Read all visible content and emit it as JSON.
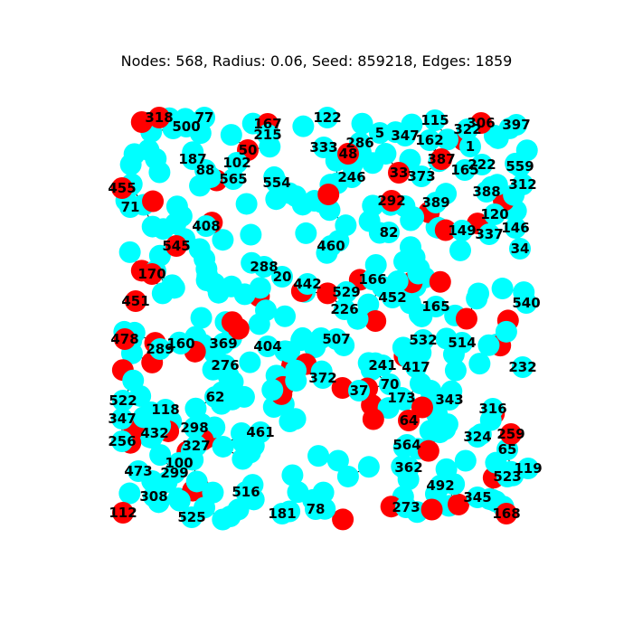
{
  "title": "Nodes: 568, Radius: 0.06, Seed: 859218, Edges: 1859",
  "colors": {
    "cyan": "#00ffff",
    "red": "#ff0000",
    "label": "#000000"
  },
  "visible_nodes": [
    {
      "label": "318",
      "c": "red"
    },
    {
      "label": "77",
      "c": "cyan"
    },
    {
      "label": "500",
      "c": "cyan"
    },
    {
      "label": "167",
      "c": "red"
    },
    {
      "label": "215",
      "c": "cyan"
    },
    {
      "label": "122",
      "c": "cyan"
    },
    {
      "label": "115",
      "c": "cyan"
    },
    {
      "label": "306",
      "c": "red"
    },
    {
      "label": "397",
      "c": "cyan"
    },
    {
      "label": "322",
      "c": "cyan"
    },
    {
      "label": "5",
      "c": "cyan"
    },
    {
      "label": "347",
      "c": "cyan"
    },
    {
      "label": "286",
      "c": "cyan"
    },
    {
      "label": "162",
      "c": "cyan"
    },
    {
      "label": "387",
      "c": "red"
    },
    {
      "label": "1",
      "c": "cyan"
    },
    {
      "label": "333",
      "c": "cyan"
    },
    {
      "label": "48",
      "c": "red"
    },
    {
      "label": "50",
      "c": "red"
    },
    {
      "label": "102",
      "c": "cyan"
    },
    {
      "label": "187",
      "c": "cyan"
    },
    {
      "label": "222",
      "c": "cyan"
    },
    {
      "label": "559",
      "c": "cyan"
    },
    {
      "label": "165",
      "c": "cyan"
    },
    {
      "label": "33",
      "c": "red"
    },
    {
      "label": "373",
      "c": "cyan"
    },
    {
      "label": "246",
      "c": "cyan"
    },
    {
      "label": "88",
      "c": "cyan"
    },
    {
      "label": "565",
      "c": "cyan"
    },
    {
      "label": "554",
      "c": "cyan"
    },
    {
      "label": "312",
      "c": "cyan"
    },
    {
      "label": "388",
      "c": "cyan"
    },
    {
      "label": "71",
      "c": "cyan"
    },
    {
      "label": "455",
      "c": "red"
    },
    {
      "label": "292",
      "c": "red"
    },
    {
      "label": "389",
      "c": "cyan"
    },
    {
      "label": "120",
      "c": "cyan"
    },
    {
      "label": "146",
      "c": "cyan"
    },
    {
      "label": "408",
      "c": "cyan"
    },
    {
      "label": "82",
      "c": "cyan"
    },
    {
      "label": "149",
      "c": "cyan"
    },
    {
      "label": "337",
      "c": "cyan"
    },
    {
      "label": "545",
      "c": "red"
    },
    {
      "label": "460",
      "c": "cyan"
    },
    {
      "label": "34",
      "c": "cyan"
    },
    {
      "label": "288",
      "c": "cyan"
    },
    {
      "label": "170",
      "c": "red"
    },
    {
      "label": "166",
      "c": "cyan"
    },
    {
      "label": "20",
      "c": "cyan"
    },
    {
      "label": "442",
      "c": "cyan"
    },
    {
      "label": "451",
      "c": "red"
    },
    {
      "label": "529",
      "c": "cyan"
    },
    {
      "label": "452",
      "c": "cyan"
    },
    {
      "label": "540",
      "c": "cyan"
    },
    {
      "label": "226",
      "c": "cyan"
    },
    {
      "label": "165",
      "c": "cyan"
    },
    {
      "label": "478",
      "c": "red"
    },
    {
      "label": "507",
      "c": "cyan"
    },
    {
      "label": "160",
      "c": "cyan"
    },
    {
      "label": "404",
      "c": "cyan"
    },
    {
      "label": "532",
      "c": "cyan"
    },
    {
      "label": "514",
      "c": "cyan"
    },
    {
      "label": "289",
      "c": "cyan"
    },
    {
      "label": "369",
      "c": "cyan"
    },
    {
      "label": "241",
      "c": "cyan"
    },
    {
      "label": "417",
      "c": "cyan"
    },
    {
      "label": "276",
      "c": "cyan"
    },
    {
      "label": "232",
      "c": "cyan"
    },
    {
      "label": "372",
      "c": "cyan"
    },
    {
      "label": "37",
      "c": "cyan"
    },
    {
      "label": "70",
      "c": "cyan"
    },
    {
      "label": "522",
      "c": "cyan"
    },
    {
      "label": "62",
      "c": "cyan"
    },
    {
      "label": "173",
      "c": "cyan"
    },
    {
      "label": "343",
      "c": "cyan"
    },
    {
      "label": "347",
      "c": "cyan"
    },
    {
      "label": "118",
      "c": "cyan"
    },
    {
      "label": "298",
      "c": "cyan"
    },
    {
      "label": "316",
      "c": "cyan"
    },
    {
      "label": "64",
      "c": "red"
    },
    {
      "label": "432",
      "c": "cyan"
    },
    {
      "label": "461",
      "c": "cyan"
    },
    {
      "label": "327",
      "c": "cyan"
    },
    {
      "label": "256",
      "c": "cyan"
    },
    {
      "label": "324",
      "c": "cyan"
    },
    {
      "label": "564",
      "c": "cyan"
    },
    {
      "label": "65",
      "c": "cyan"
    },
    {
      "label": "259",
      "c": "red"
    },
    {
      "label": "100",
      "c": "cyan"
    },
    {
      "label": "299",
      "c": "cyan"
    },
    {
      "label": "119",
      "c": "cyan"
    },
    {
      "label": "516",
      "c": "cyan"
    },
    {
      "label": "362",
      "c": "cyan"
    },
    {
      "label": "308",
      "c": "cyan"
    },
    {
      "label": "525",
      "c": "cyan"
    },
    {
      "label": "78",
      "c": "cyan"
    },
    {
      "label": "181",
      "c": "cyan"
    },
    {
      "label": "112",
      "c": "red"
    },
    {
      "label": "168",
      "c": "red"
    },
    {
      "label": "345",
      "c": "cyan"
    },
    {
      "label": "273",
      "c": "cyan"
    },
    {
      "label": "492",
      "c": "cyan"
    },
    {
      "label": "523",
      "c": "cyan"
    },
    {
      "label": "473",
      "c": "cyan"
    }
  ]
}
